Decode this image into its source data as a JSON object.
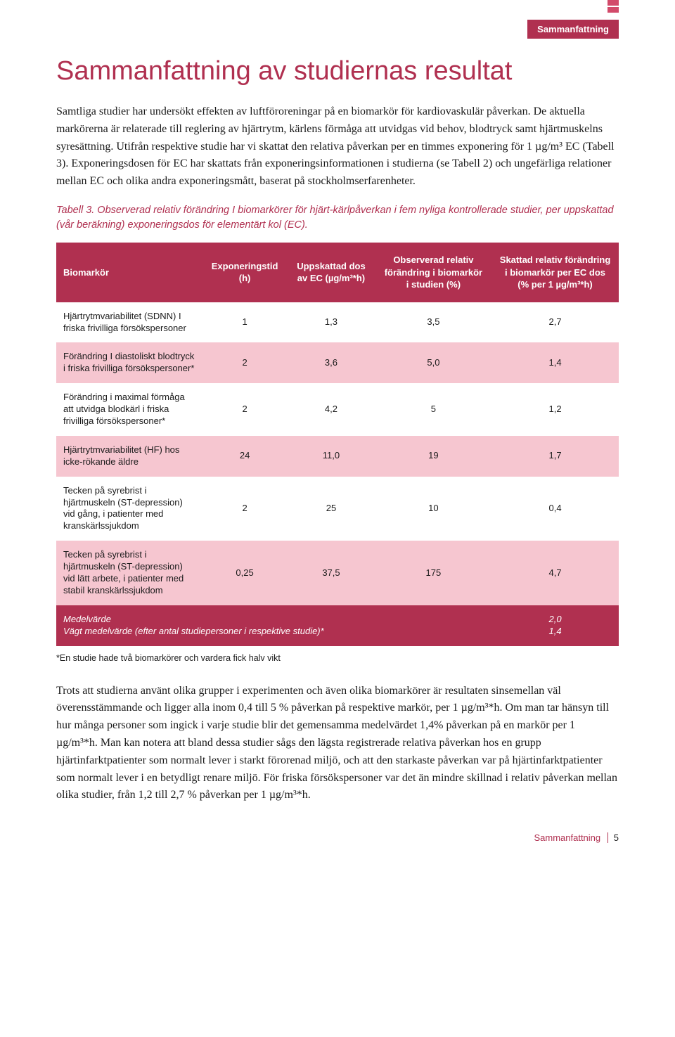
{
  "header": {
    "tag": "Sammanfattning"
  },
  "title": "Sammanfattning av studiernas resultat",
  "intro": "Samtliga studier har undersökt effekten av luftföroreningar på en biomarkör för kardiovaskulär påverkan. De aktuella markörerna är relaterade till reglering av hjärtrytm, kärlens förmåga att utvidgas vid behov, blodtryck samt hjärtmuskelns syresättning. Utifrån respektive studie har vi skattat den relativa påverkan per en timmes exponering för 1 µg/m³ EC (Tabell 3). Exponeringsdosen för EC har skattats från exponeringsinformationen i studierna (se Tabell 2) och ungefärliga relationer mellan EC och olika andra exponeringsmått, baserat på stockholmserfarenheter.",
  "caption": "Tabell 3. Observerad relativ förändring I biomarkörer för hjärt-kärlpåverkan i fem nyliga kontrollerade studier, per uppskattad (vår beräkning) exponeringsdos för elementärt kol (EC).",
  "table": {
    "headers": [
      "Biomarkör",
      "Exponeringstid (h)",
      "Uppskattad dos av EC (µg/m³*h)",
      "Observerad relativ förändring i biomarkör i studien (%)",
      "Skattad relativ förändring i biomarkör per EC dos (% per 1 µg/m³*h)"
    ],
    "rows": [
      {
        "bg": "white",
        "cells": [
          "Hjärtrytmvariabilitet (SDNN) I friska frivilliga försökspersoner",
          "1",
          "1,3",
          "3,5",
          "2,7"
        ]
      },
      {
        "bg": "pink",
        "cells": [
          "Förändring I diastoliskt blodtryck i friska frivilliga försökspersoner*",
          "2",
          "3,6",
          "5,0",
          "1,4"
        ]
      },
      {
        "bg": "white",
        "cells": [
          "Förändring i maximal förmåga att utvidga blodkärl i friska frivilliga försökspersoner*",
          "2",
          "4,2",
          "5",
          "1,2"
        ]
      },
      {
        "bg": "pink",
        "cells": [
          "Hjärtrytmvariabilitet (HF) hos icke-rökande äldre",
          "24",
          "11,0",
          "19",
          "1,7"
        ]
      },
      {
        "bg": "white",
        "cells": [
          "Tecken på syrebrist i hjärtmuskeln (ST-depression) vid gång, i patienter med kranskärlssjukdom",
          "2",
          "25",
          "10",
          "0,4"
        ]
      },
      {
        "bg": "pink",
        "cells": [
          "Tecken på syrebrist i hjärtmuskeln (ST-depression) vid lätt arbete, i patienter med stabil kranskärlssjukdom",
          "0,25",
          "37,5",
          "175",
          "4,7"
        ]
      }
    ],
    "mean": {
      "label1": "Medelvärde",
      "val1": "2,0",
      "label2": "Vägt medelvärde (efter antal studiepersoner i respektive studie)*",
      "val2": "1,4"
    }
  },
  "footnote": "*En studie hade två biomarkörer och vardera fick halv vikt",
  "discussion": "Trots att studierna använt olika grupper i experimenten och även olika biomarkörer är resultaten sinsemellan väl överensstämmande och ligger alla inom 0,4 till 5 % påverkan på respektive markör, per 1 µg/m³*h. Om man tar hänsyn till hur många personer som ingick i varje studie blir det gemensamma medelvärdet 1,4% påverkan på en markör per 1 µg/m³*h. Man kan notera att bland dessa studier sågs den lägsta registrerade relativa påverkan hos en grupp hjärtinfarktpatienter som normalt lever i starkt förorenad miljö, och att den starkaste påverkan var på hjärtinfarktpatienter som normalt lever i en betydligt renare miljö. För friska försökspersoner var det än mindre skillnad i relativ påverkan mellan olika studier, från 1,2 till 2,7 % påverkan per 1 µg/m³*h.",
  "footer": {
    "section": "Sammanfattning",
    "page": "5"
  },
  "colors": {
    "brand": "#b03050",
    "pink": "#f6c6d0",
    "white": "#ffffff",
    "text": "#1a1a1a"
  }
}
